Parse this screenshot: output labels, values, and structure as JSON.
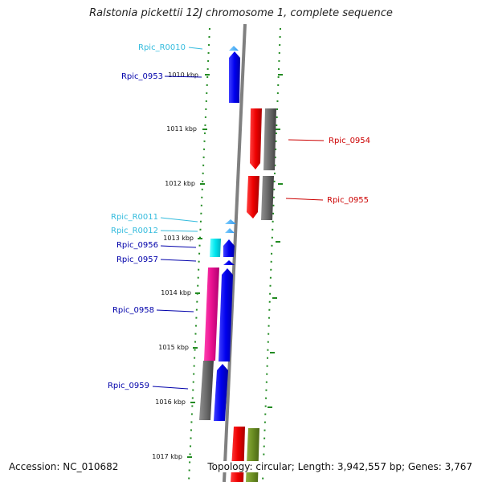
{
  "title": "Ralstonia pickettii 12J chromosome 1, complete sequence",
  "footer": {
    "accession": "Accession: NC_010682",
    "summary": "Topology: circular; Length: 3,942,557 bp; Genes: 3,767"
  },
  "colors": {
    "axis": "#808080",
    "ruler_dots": "#228B22",
    "rna_label": "#33BBDD",
    "forward_label": "#0000AA",
    "reverse_label": "#CC0000",
    "blue": "#0000EE",
    "light_blue": "#44BBFF",
    "cyan": "#00E5EE",
    "magenta": "#E8108F",
    "gray": "#707070",
    "red": "#EE0000",
    "olive": "#6B8E23"
  },
  "ruler": {
    "labels": [
      "1010 kbp",
      "1011 kbp",
      "1012 kbp",
      "1013 kbp",
      "1014 kbp",
      "1015 kbp",
      "1016 kbp",
      "1017 kbp"
    ]
  },
  "gene_labels": [
    {
      "text": "Rpic_R0010",
      "type": "rna"
    },
    {
      "text": "Rpic_0953",
      "type": "forward"
    },
    {
      "text": "Rpic_R0011",
      "type": "rna"
    },
    {
      "text": "Rpic_R0012",
      "type": "rna"
    },
    {
      "text": "Rpic_0956",
      "type": "forward"
    },
    {
      "text": "Rpic_0957",
      "type": "forward"
    },
    {
      "text": "Rpic_0958",
      "type": "forward"
    },
    {
      "text": "Rpic_0959",
      "type": "forward"
    },
    {
      "text": "Rpic_0954",
      "type": "reverse"
    },
    {
      "text": "Rpic_0955",
      "type": "reverse"
    }
  ]
}
